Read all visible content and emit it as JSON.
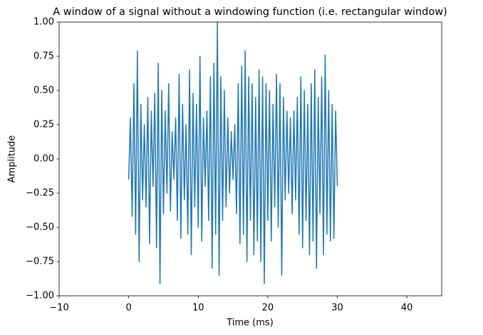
{
  "chart_data": {
    "type": "line",
    "title": "A window of a signal without a windowing function (i.e. rectangular window)",
    "xlabel": "Time (ms)",
    "ylabel": "Amplitude",
    "x": [
      0,
      0.25,
      0.5,
      0.75,
      1,
      1.25,
      1.5,
      1.75,
      2,
      2.25,
      2.5,
      2.75,
      3,
      3.25,
      3.5,
      3.75,
      4,
      4.25,
      4.5,
      4.75,
      5,
      5.25,
      5.5,
      5.75,
      6,
      6.25,
      6.5,
      6.75,
      7,
      7.25,
      7.5,
      7.75,
      8,
      8.25,
      8.5,
      8.75,
      9,
      9.25,
      9.5,
      9.75,
      10,
      10.25,
      10.5,
      10.75,
      11,
      11.25,
      11.5,
      11.75,
      12,
      12.25,
      12.5,
      12.75,
      13,
      13.25,
      13.5,
      13.75,
      14,
      14.25,
      14.5,
      14.75,
      15,
      15.25,
      15.5,
      15.75,
      16,
      16.25,
      16.5,
      16.75,
      17,
      17.25,
      17.5,
      17.75,
      18,
      18.25,
      18.5,
      18.75,
      19,
      19.25,
      19.5,
      19.75,
      20,
      20.25,
      20.5,
      20.75,
      21,
      21.25,
      21.5,
      21.75,
      22,
      22.25,
      22.5,
      22.75,
      23,
      23.25,
      23.5,
      23.75,
      24,
      24.25,
      24.5,
      24.75,
      25,
      25.25,
      25.5,
      25.75,
      26,
      26.25,
      26.5,
      26.75,
      27,
      27.25,
      27.5,
      27.75,
      28,
      28.25,
      28.5,
      28.75,
      29,
      29.25,
      29.5,
      29.75,
      30
    ],
    "values": [
      -0.15,
      0.3,
      -0.42,
      0.55,
      -0.55,
      0.79,
      -0.75,
      0.4,
      -0.3,
      0.25,
      -0.35,
      0.45,
      -0.62,
      0.35,
      -0.2,
      0.48,
      -0.65,
      0.7,
      -0.91,
      0.5,
      -0.4,
      0.35,
      -0.25,
      0.55,
      -0.38,
      0.2,
      -0.15,
      0.3,
      -0.45,
      0.62,
      -0.58,
      0.4,
      -0.3,
      0.25,
      -0.55,
      0.65,
      -0.7,
      0.48,
      -0.35,
      0.4,
      -0.5,
      0.75,
      -0.6,
      0.3,
      -0.2,
      0.35,
      -0.45,
      0.6,
      -0.8,
      0.7,
      -0.55,
      1.0,
      -0.85,
      0.6,
      -0.45,
      0.5,
      -0.35,
      0.3,
      -0.25,
      0.2,
      -0.15,
      0.25,
      -0.4,
      0.55,
      -0.62,
      0.68,
      -0.55,
      0.79,
      -0.75,
      0.6,
      -0.45,
      0.55,
      -0.7,
      0.45,
      -0.6,
      0.65,
      -0.75,
      0.6,
      -0.91,
      0.55,
      -0.45,
      0.5,
      -0.6,
      0.4,
      -0.35,
      0.62,
      -0.5,
      0.55,
      -0.85,
      0.45,
      -0.3,
      0.35,
      -0.25,
      0.3,
      -0.4,
      0.35,
      -0.3,
      0.45,
      -0.55,
      0.6,
      -0.65,
      0.5,
      -0.45,
      0.4,
      -0.7,
      0.55,
      -0.6,
      0.65,
      -0.8,
      0.45,
      -0.4,
      0.6,
      -0.7,
      0.76,
      -0.55,
      0.5,
      -0.6,
      0.4,
      -0.58,
      0.35,
      -0.2
    ],
    "color": "#1f77b4",
    "xlim": [
      -10,
      45
    ],
    "xticks": [
      {
        "value": -10,
        "label": "−10"
      },
      0,
      10,
      20,
      30,
      40
    ],
    "ylim": [
      -1,
      1
    ],
    "yticks": [
      {
        "value": -1,
        "label": "−1.00"
      },
      {
        "value": -0.75,
        "label": "−0.75"
      },
      {
        "value": -0.5,
        "label": "−0.50"
      },
      {
        "value": -0.25,
        "label": "−0.25"
      },
      {
        "value": 0,
        "label": "0.00"
      },
      {
        "value": 0.25,
        "label": "0.25"
      },
      {
        "value": 0.5,
        "label": "0.50"
      },
      {
        "value": 0.75,
        "label": "0.75"
      },
      {
        "value": 1,
        "label": "1.00"
      }
    ],
    "grid": false
  }
}
